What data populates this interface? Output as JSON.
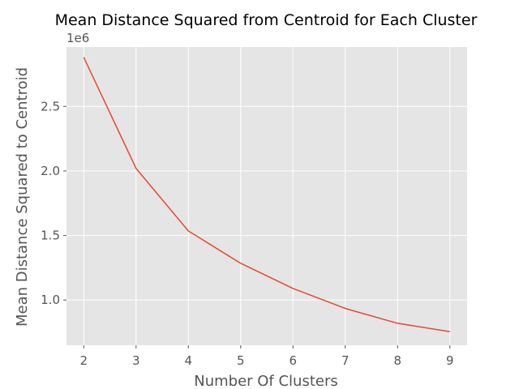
{
  "chart_data": {
    "type": "line",
    "title": "Mean Distance Squared from Centroid for Each Cluster",
    "xlabel": "Number Of Clusters",
    "ylabel": "Mean Distance Squared to Centroid",
    "y_offset_label": "1e6",
    "x": [
      2,
      3,
      4,
      5,
      6,
      7,
      8,
      9
    ],
    "series": [
      {
        "values": [
          2.88,
          2.02,
          1.535,
          1.285,
          1.09,
          0.935,
          0.82,
          0.755
        ]
      }
    ],
    "xlim": [
      1.67,
      9.33
    ],
    "ylim": [
      0.65,
      2.96
    ],
    "xticks": [
      2,
      3,
      4,
      5,
      6,
      7,
      8,
      9
    ],
    "xtick_labels": [
      "2",
      "3",
      "4",
      "5",
      "6",
      "7",
      "8",
      "9"
    ],
    "yticks": [
      1.0,
      1.5,
      2.0,
      2.5
    ],
    "ytick_labels": [
      "1.0",
      "1.5",
      "2.0",
      "2.5"
    ],
    "grid": true,
    "background_color": "#e5e5e5",
    "line_color": "#e24a33"
  }
}
